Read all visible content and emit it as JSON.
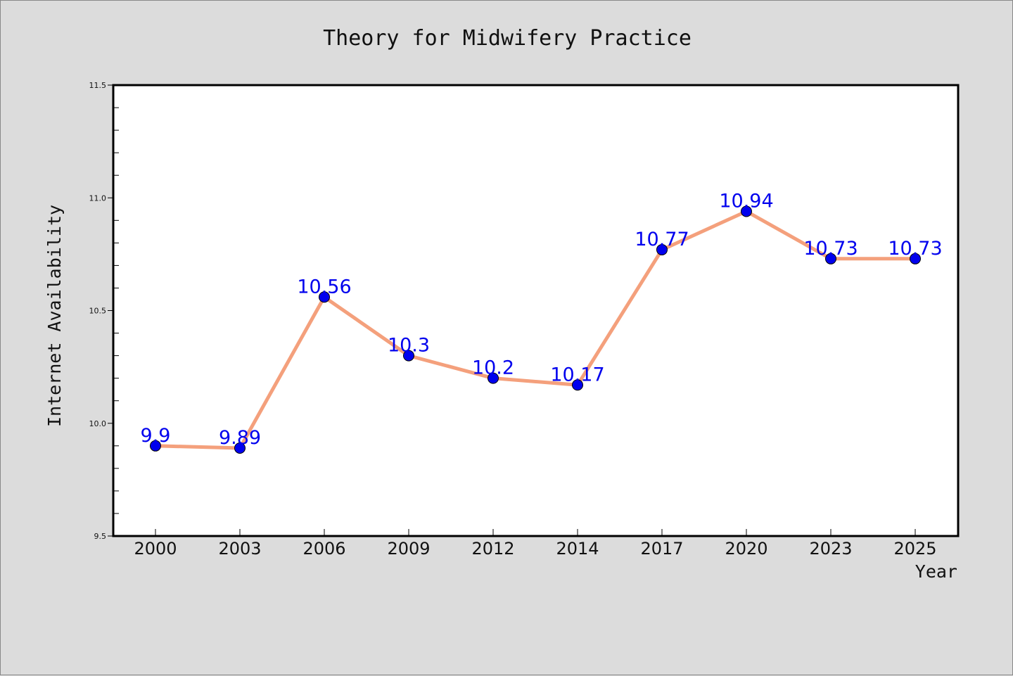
{
  "chart_data": {
    "type": "line",
    "title": "Theory for Midwifery Practice",
    "xlabel": "Year",
    "ylabel": "Internet Availability",
    "categories": [
      "2000",
      "2003",
      "2006",
      "2009",
      "2012",
      "2014",
      "2017",
      "2020",
      "2023",
      "2025"
    ],
    "series": [
      {
        "values": [
          9.9,
          9.89,
          10.56,
          10.3,
          10.2,
          10.17,
          10.77,
          10.94,
          10.73,
          10.73
        ],
        "data_labels": [
          "9.9",
          "9.89",
          "10.56",
          "10.3",
          "10.2",
          "10.17",
          "10.77",
          "10.94",
          "10.73",
          "10.73"
        ],
        "line_color": "#f4a07c",
        "marker_color": "#0000ee",
        "label_color": "#0000ee"
      }
    ],
    "ylim": [
      9.5,
      11.5
    ],
    "yticks": [
      "9.5",
      "10.0",
      "10.5",
      "11.0",
      "11.5"
    ],
    "grid": false,
    "legend": "none",
    "colors": {
      "background": "#dcdcdc",
      "plot_area": "#ffffff",
      "axes": "#000000"
    }
  }
}
